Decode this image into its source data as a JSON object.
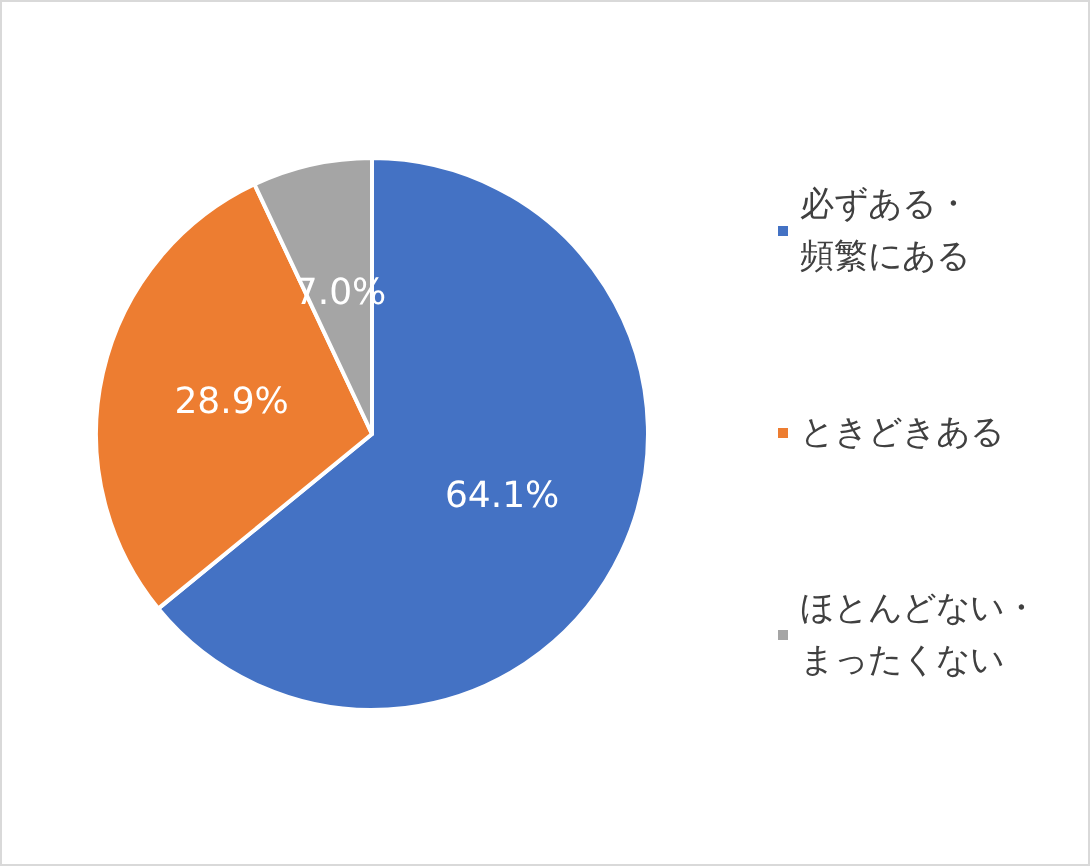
{
  "chart_data": {
    "type": "pie",
    "categories": [
      "必ずある・頻繁にある",
      "ときどきある",
      "ほとんどない・まったくない"
    ],
    "values": [
      64.1,
      28.9,
      7.0
    ],
    "colors": [
      "#4472c4",
      "#ed7d31",
      "#a5a5a5"
    ],
    "value_labels": [
      "64.1%",
      "28.9%",
      "7.0%"
    ],
    "legend": "right"
  }
}
